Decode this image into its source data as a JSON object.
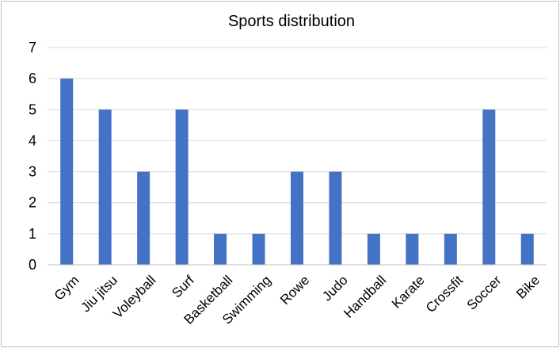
{
  "chart_data": {
    "type": "bar",
    "title": "Sports distribution",
    "xlabel": "",
    "ylabel": "",
    "categories": [
      "Gym",
      "Jiu jitsu",
      "Voleyball",
      "Surf",
      "Basketball",
      "Swimming",
      "Rowe",
      "Judo",
      "Handball",
      "Karate",
      "Crossfit",
      "Soccer",
      "Bike"
    ],
    "values": [
      6,
      5,
      3,
      5,
      1,
      1,
      3,
      3,
      1,
      1,
      1,
      5,
      1
    ],
    "ylim": [
      0,
      7
    ],
    "yticks": [
      0,
      1,
      2,
      3,
      4,
      5,
      6,
      7
    ],
    "grid": true,
    "legend": "none",
    "bar_color": "#4472c4"
  }
}
